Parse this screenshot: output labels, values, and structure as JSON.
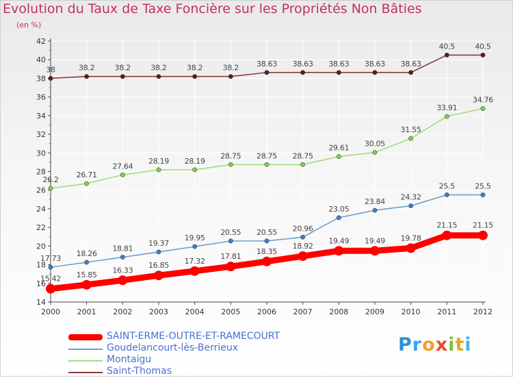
{
  "chart_data": {
    "type": "line",
    "title": "Evolution du Taux de Taxe Foncière sur les Propriétés Non Bâties",
    "subtitle": "(en %)",
    "x": [
      "2000",
      "2001",
      "2002",
      "2003",
      "2004",
      "2005",
      "2006",
      "2007",
      "2008",
      "2009",
      "2010",
      "2011",
      "2012"
    ],
    "ylim": [
      14,
      42
    ],
    "yticks": [
      "14",
      "16",
      "18",
      "20",
      "22",
      "24",
      "26",
      "28",
      "30",
      "32",
      "34",
      "36",
      "38",
      "40",
      "42"
    ],
    "grid": true,
    "legend_position": "bottom-left",
    "series": [
      {
        "name": "SAINT-ERME-OUTRE-ET-RAMECOURT",
        "color": "#ff0000",
        "values": [
          15.42,
          15.85,
          16.33,
          16.85,
          17.32,
          17.81,
          18.35,
          18.92,
          19.49,
          19.49,
          19.78,
          21.15,
          21.15
        ],
        "labels": [
          "15.42",
          "15.85",
          "16.33",
          "16.85",
          "17.32",
          "17.81",
          "18.35",
          "18.92",
          "19.49",
          "19.49",
          "19.78",
          "21.15",
          "21.15"
        ]
      },
      {
        "name": "Goudelancourt-lès-Berrieux",
        "color": "#6c9fd0",
        "marker_color": "#3d7fc1",
        "values": [
          17.73,
          18.26,
          18.81,
          19.37,
          19.95,
          20.55,
          20.55,
          20.96,
          23.05,
          23.84,
          24.32,
          25.5,
          25.5
        ],
        "labels": [
          "17.73",
          "18.26",
          "18.81",
          "19.37",
          "19.95",
          "20.55",
          "20.55",
          "20.96",
          "23.05",
          "23.84",
          "24.32",
          "25.5",
          "25.5"
        ]
      },
      {
        "name": "Montaigu",
        "color": "#a2dc80",
        "marker_color": "#7ccf4a",
        "values": [
          26.2,
          26.71,
          27.64,
          28.19,
          28.19,
          28.75,
          28.75,
          28.75,
          29.61,
          30.05,
          31.55,
          33.91,
          34.76
        ],
        "labels": [
          "26.2",
          "26.71",
          "27.64",
          "28.19",
          "28.19",
          "28.75",
          "28.75",
          "28.75",
          "29.61",
          "30.05",
          "31.55",
          "33.91",
          "34.76"
        ]
      },
      {
        "name": "Saint-Thomas",
        "color": "#8a3b3b",
        "marker_color": "#5a1e1e",
        "values": [
          38,
          38.2,
          38.2,
          38.2,
          38.2,
          38.2,
          38.63,
          38.63,
          38.63,
          38.63,
          38.63,
          40.5,
          40.5
        ],
        "labels": [
          "38",
          "38.2",
          "38.2",
          "38.2",
          "38.2",
          "38.2",
          "38.63",
          "38.63",
          "38.63",
          "38.63",
          "38.63",
          "40.5",
          "40.5"
        ]
      }
    ]
  },
  "logo": {
    "letters": [
      "P",
      "r",
      "o",
      "x",
      "i",
      "t",
      "i"
    ],
    "colors": [
      "#2f8fd6",
      "#3aa7e0",
      "#f0a22c",
      "#e94a2e",
      "#7cc23a",
      "#e9a42c",
      "#4db2e0"
    ]
  }
}
